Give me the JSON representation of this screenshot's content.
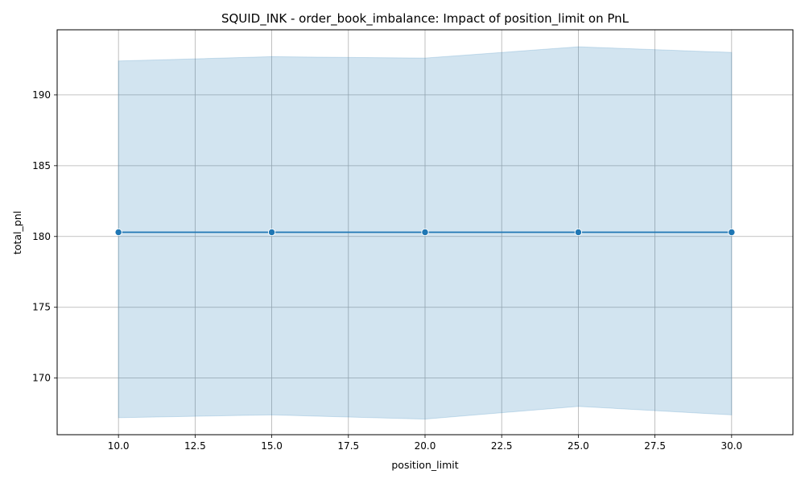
{
  "chart_data": {
    "type": "line",
    "title": "SQUID_INK - order_book_imbalance: Impact of position_limit on PnL",
    "xlabel": "position_limit",
    "ylabel": "total_pnl",
    "xlim": [
      8.0,
      32.0
    ],
    "ylim": [
      166.0,
      194.6
    ],
    "xticks": [
      10.0,
      12.5,
      15.0,
      17.5,
      20.0,
      22.5,
      25.0,
      27.5,
      30.0
    ],
    "xtick_labels": [
      "10.0",
      "12.5",
      "15.0",
      "17.5",
      "20.0",
      "22.5",
      "25.0",
      "27.5",
      "30.0"
    ],
    "yticks": [
      170,
      175,
      180,
      185,
      190
    ],
    "ytick_labels": [
      "170",
      "175",
      "180",
      "185",
      "190"
    ],
    "grid": true,
    "series": [
      {
        "x": [
          10,
          15,
          20,
          25,
          30
        ],
        "y": [
          180.3,
          180.3,
          180.3,
          180.3,
          180.3
        ],
        "ci_upper": [
          192.4,
          192.7,
          192.6,
          193.4,
          193.0
        ],
        "ci_lower": [
          167.2,
          167.4,
          167.1,
          168.0,
          167.4
        ],
        "color": "#1f77b4",
        "band_color": "#1f77b4"
      }
    ]
  }
}
